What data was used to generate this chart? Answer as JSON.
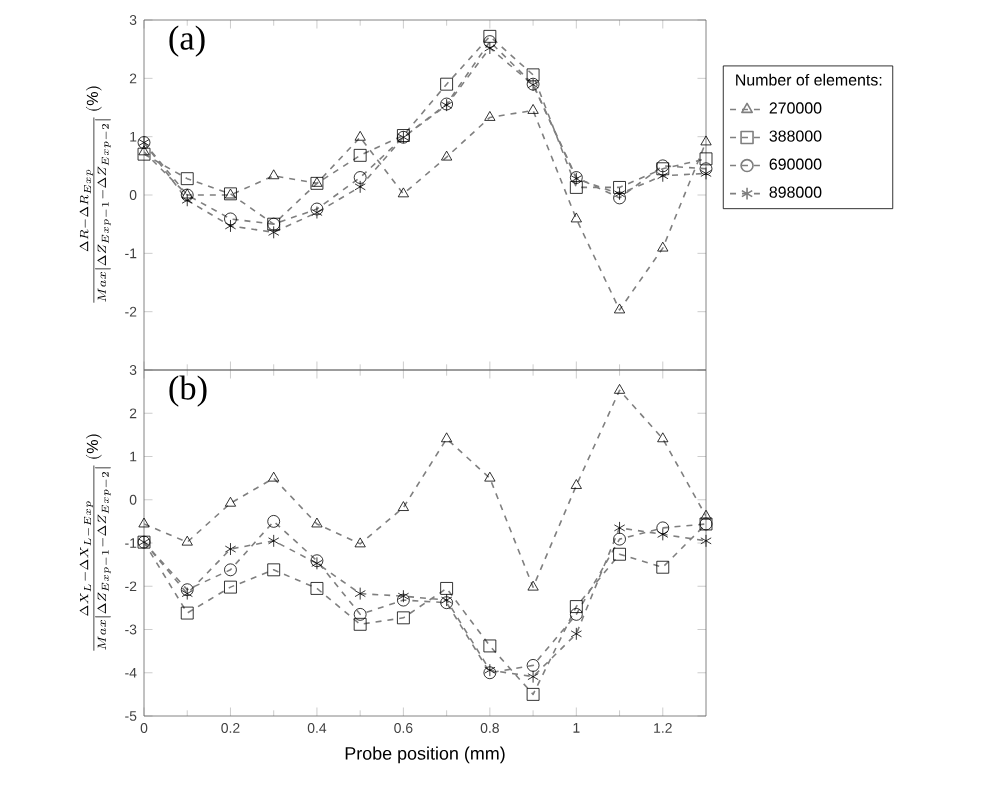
{
  "chart_data": [
    {
      "type": "line",
      "title": "(a)",
      "ylabel": "\\frac{\\Delta R - \\Delta R_{Exp}}{Max\\left|\\Delta Z_{Exp-1} - \\Delta Z_{Exp-2}\\right|}\\,(\\%)",
      "legend_title": "Number of elements:",
      "legend": "right",
      "line_style": "dashed",
      "tick_labels": "y",
      "x": [
        0,
        0.1,
        0.2,
        0.3,
        0.4,
        0.5,
        0.6,
        0.7,
        0.8,
        0.9,
        1.0,
        1.1,
        1.2,
        1.3
      ],
      "xlim": [
        0,
        1.3
      ],
      "xticks": [
        0,
        0.2,
        0.4,
        0.6,
        0.8,
        1,
        1.2
      ],
      "ylim": [
        -3,
        3
      ],
      "yticks": [
        -2,
        -1,
        0,
        1,
        2,
        3
      ],
      "series": [
        {
          "name": "270000",
          "color": "#7f7f7f",
          "marker": "triangle",
          "values": [
            0.74,
            0.0,
            0.0,
            0.33,
            0.2,
            0.99,
            0.02,
            0.65,
            1.33,
            1.45,
            -0.41,
            -1.97,
            -0.91,
            0.91
          ]
        },
        {
          "name": "388000",
          "color": "#7f7f7f",
          "marker": "square",
          "values": [
            0.7,
            0.28,
            0.02,
            -0.5,
            0.2,
            0.68,
            1.02,
            1.9,
            2.72,
            2.06,
            0.13,
            0.13,
            0.45,
            0.62
          ]
        },
        {
          "name": "690000",
          "color": "#7f7f7f",
          "marker": "circle",
          "values": [
            0.9,
            0.0,
            -0.41,
            -0.5,
            -0.24,
            0.3,
            0.99,
            1.56,
            2.63,
            1.9,
            0.3,
            -0.05,
            0.5,
            0.45
          ]
        },
        {
          "name": "898000",
          "color": "#7f7f7f",
          "marker": "cross",
          "values": [
            0.9,
            -0.09,
            -0.53,
            -0.64,
            -0.3,
            0.14,
            0.99,
            1.54,
            2.52,
            1.89,
            0.28,
            0.02,
            0.33,
            0.37
          ]
        }
      ]
    },
    {
      "type": "line",
      "title": "(b)",
      "xlabel": "Probe position (mm)",
      "ylabel": "\\frac{\\Delta X_{L} - \\Delta X_{L-Exp}}{Max\\left|\\Delta Z_{Exp-1} - \\Delta Z_{Exp-2}\\right|}\\,(\\%)",
      "line_style": "dashed",
      "x": [
        0,
        0.1,
        0.2,
        0.3,
        0.4,
        0.5,
        0.6,
        0.7,
        0.8,
        0.9,
        1.0,
        1.1,
        1.2,
        1.3
      ],
      "xlim": [
        0,
        1.3
      ],
      "xticks": [
        0,
        0.2,
        0.4,
        0.6,
        0.8,
        1,
        1.2
      ],
      "ylim": [
        -5,
        3
      ],
      "yticks": [
        -5,
        -4,
        -3,
        -2,
        -1,
        0,
        1,
        2,
        3
      ],
      "series": [
        {
          "color": "#7f7f7f",
          "marker": "triangle",
          "values": [
            -0.56,
            -0.98,
            -0.08,
            0.5,
            -0.56,
            -1.02,
            -0.18,
            1.41,
            0.5,
            -2.02,
            0.33,
            2.53,
            1.41,
            -0.38
          ]
        },
        {
          "color": "#7f7f7f",
          "marker": "square",
          "values": [
            -0.98,
            -2.62,
            -2.02,
            -1.62,
            -2.05,
            -2.88,
            -2.73,
            -2.05,
            -3.38,
            -4.5,
            -2.47,
            -1.26,
            -1.56,
            -0.56
          ]
        },
        {
          "color": "#7f7f7f",
          "marker": "circle",
          "values": [
            -0.98,
            -2.08,
            -1.62,
            -0.5,
            -1.41,
            -2.65,
            -2.32,
            -2.38,
            -4.0,
            -3.83,
            -2.65,
            -0.91,
            -0.65,
            -0.56
          ]
        },
        {
          "color": "#7f7f7f",
          "marker": "cross",
          "values": [
            -0.98,
            -2.17,
            -1.14,
            -0.95,
            -1.47,
            -2.17,
            -2.23,
            -2.32,
            -3.94,
            -4.09,
            -3.1,
            -0.65,
            -0.8,
            -0.95
          ]
        }
      ]
    }
  ]
}
